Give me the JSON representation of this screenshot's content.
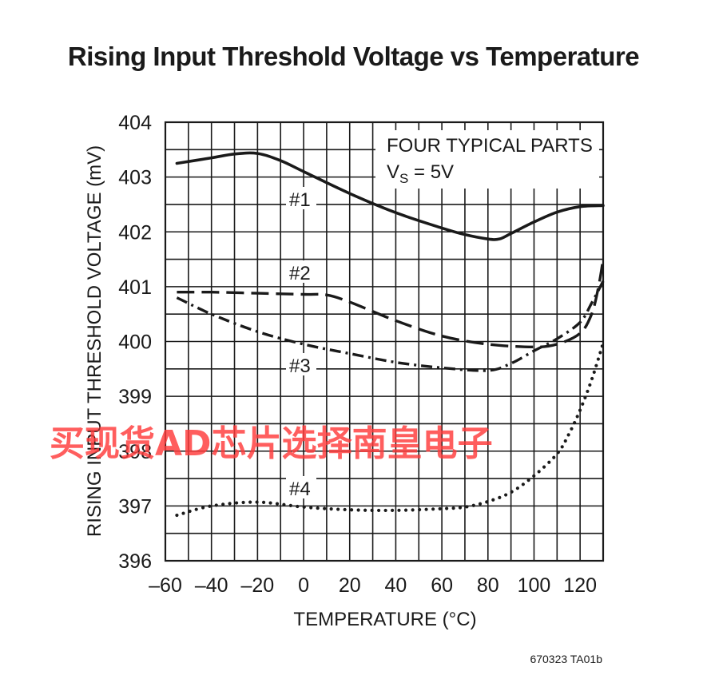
{
  "chart_data": {
    "type": "line",
    "title": "Rising Input Threshold Voltage vs Temperature",
    "xlabel": "TEMPERATURE (°C)",
    "ylabel": "RISING INPUT THRESHOLD VOLTAGE (mV)",
    "xlim": [
      -60,
      130
    ],
    "ylim": [
      396,
      404
    ],
    "xticks": [
      -60,
      -40,
      -20,
      0,
      20,
      40,
      60,
      80,
      100,
      120
    ],
    "xtick_labels": [
      "–60",
      "–40",
      "–20",
      "0",
      "20",
      "40",
      "60",
      "80",
      "100",
      "120"
    ],
    "yticks": [
      396,
      397,
      398,
      399,
      400,
      401,
      402,
      403,
      404
    ],
    "grid": true,
    "annotation_line1": "FOUR TYPICAL PARTS",
    "annotation_line2_main": "V",
    "annotation_line2_sub": "S",
    "annotation_line2_rest": " = 5V",
    "series": [
      {
        "name": "#1",
        "style": "solid",
        "x": [
          -55,
          -40,
          -30,
          -20,
          -10,
          0,
          20,
          40,
          60,
          70,
          80,
          85,
          90,
          100,
          110,
          120,
          130
        ],
        "y": [
          403.25,
          403.35,
          403.42,
          403.43,
          403.3,
          403.1,
          402.7,
          402.35,
          402.07,
          401.95,
          401.87,
          401.87,
          401.97,
          402.18,
          402.36,
          402.46,
          402.48
        ]
      },
      {
        "name": "#2",
        "style": "dashed",
        "x": [
          -55,
          -40,
          -20,
          0,
          10,
          20,
          40,
          60,
          80,
          100,
          110,
          120,
          125,
          128,
          130
        ],
        "y": [
          400.9,
          400.9,
          400.88,
          400.86,
          400.85,
          400.72,
          400.38,
          400.1,
          399.95,
          399.9,
          399.95,
          400.15,
          400.5,
          401.0,
          401.5
        ]
      },
      {
        "name": "#3",
        "style": "dash-dot",
        "x": [
          -55,
          -40,
          -20,
          0,
          20,
          40,
          60,
          80,
          90,
          100,
          110,
          120,
          125,
          130
        ],
        "y": [
          400.8,
          400.5,
          400.18,
          399.95,
          399.78,
          399.62,
          399.52,
          399.47,
          399.6,
          399.83,
          400.05,
          400.35,
          400.7,
          401.1
        ]
      },
      {
        "name": "#4",
        "style": "dotted",
        "x": [
          -55,
          -40,
          -20,
          0,
          20,
          40,
          60,
          70,
          80,
          90,
          100,
          110,
          115,
          120,
          125,
          130
        ],
        "y": [
          396.83,
          397.0,
          397.07,
          396.98,
          396.93,
          396.92,
          396.95,
          396.98,
          397.08,
          397.25,
          397.55,
          397.95,
          398.3,
          398.75,
          399.3,
          399.97
        ]
      }
    ]
  },
  "watermark": "买现货AD芯片选择南皇电子",
  "figure_code": "670323 TA01b"
}
